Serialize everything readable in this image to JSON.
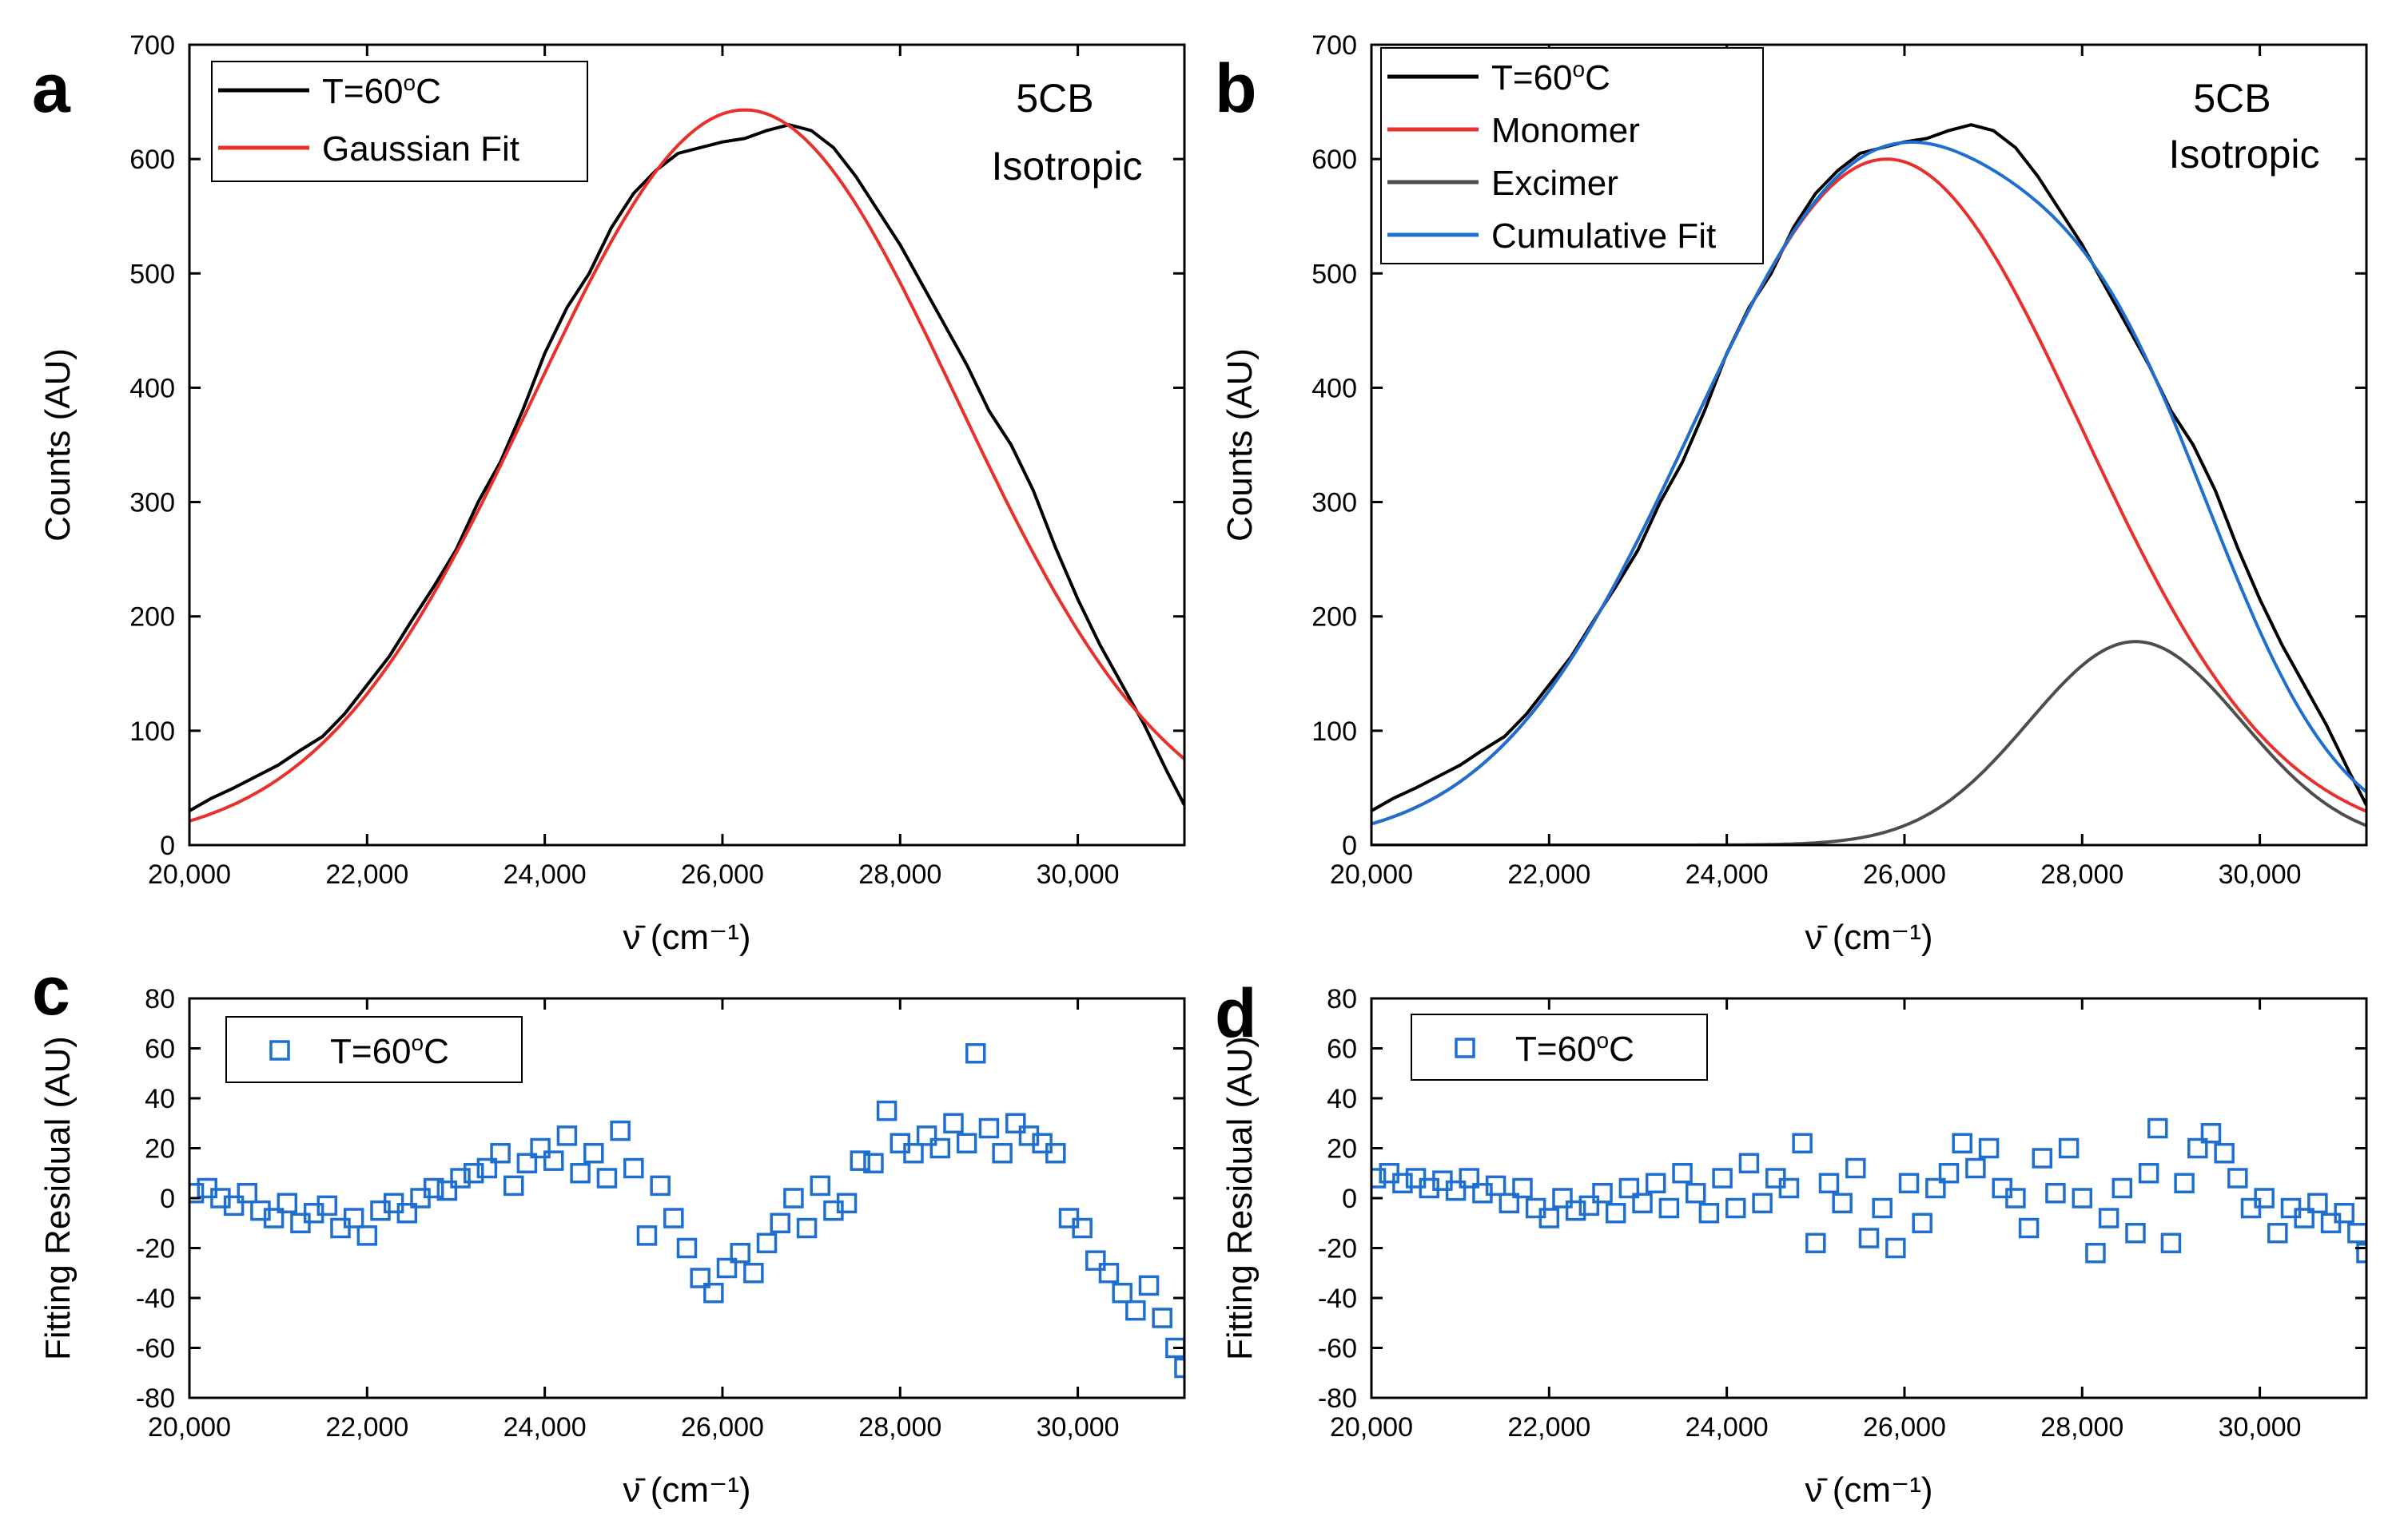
{
  "chart_data": [
    {
      "panel": "a",
      "type": "line",
      "annotation": [
        "5CB",
        "Isotropic"
      ],
      "xlabel": "ν̄ (cm⁻¹)",
      "ylabel": "Counts (AU)",
      "xlim": [
        20000,
        31200
      ],
      "ylim": [
        0,
        700
      ],
      "xticks": [
        20000,
        22000,
        24000,
        26000,
        28000,
        30000
      ],
      "xtick_labels": [
        "20,000",
        "22,000",
        "24,000",
        "26,000",
        "28,000",
        "30,000"
      ],
      "yticks": [
        0,
        100,
        200,
        300,
        400,
        500,
        600,
        700
      ],
      "ytick_labels": [
        "0",
        "100",
        "200",
        "300",
        "400",
        "500",
        "600",
        "700"
      ],
      "legend_position": "top-left",
      "series": [
        {
          "name": "T=60ºC",
          "color": "#000000",
          "x": [
            20000,
            20250,
            20500,
            20750,
            21000,
            21250,
            21500,
            21750,
            22000,
            22250,
            22500,
            22750,
            23000,
            23250,
            23500,
            23750,
            24000,
            24250,
            24500,
            24750,
            25000,
            25250,
            25500,
            25750,
            26000,
            26250,
            26500,
            26750,
            27000,
            27250,
            27500,
            27750,
            28000,
            28250,
            28500,
            28750,
            29000,
            29250,
            29500,
            29750,
            30000,
            30250,
            30500,
            30750,
            31000,
            31200
          ],
          "y": [
            30,
            41,
            50,
            60,
            70,
            83,
            95,
            115,
            140,
            165,
            196,
            226,
            258,
            300,
            335,
            380,
            430,
            470,
            500,
            540,
            570,
            590,
            605,
            610,
            615,
            618,
            625,
            630,
            625,
            610,
            585,
            555,
            525,
            490,
            455,
            420,
            380,
            350,
            310,
            260,
            215,
            175,
            140,
            105,
            65,
            35
          ]
        },
        {
          "name": "Gaussian Fit",
          "color": "#e8312c",
          "curve": {
            "form": "gaussian",
            "amplitude": 643,
            "center": 26250,
            "sigma": 2390
          },
          "x": [],
          "y": []
        }
      ]
    },
    {
      "panel": "b",
      "type": "line",
      "annotation": [
        "5CB",
        "Isotropic"
      ],
      "xlabel": "ν̄ (cm⁻¹)",
      "ylabel": "Counts (AU)",
      "xlim": [
        20000,
        31200
      ],
      "ylim": [
        0,
        700
      ],
      "xticks": [
        20000,
        22000,
        24000,
        26000,
        28000,
        30000
      ],
      "xtick_labels": [
        "20,000",
        "22,000",
        "24,000",
        "26,000",
        "28,000",
        "30,000"
      ],
      "yticks": [
        0,
        100,
        200,
        300,
        400,
        500,
        600,
        700
      ],
      "ytick_labels": [
        "0",
        "100",
        "200",
        "300",
        "400",
        "500",
        "600",
        "700"
      ],
      "legend_position": "top-left",
      "series": [
        {
          "name": "T=60ºC",
          "color": "#000000",
          "x": [
            20000,
            20250,
            20500,
            20750,
            21000,
            21250,
            21500,
            21750,
            22000,
            22250,
            22500,
            22750,
            23000,
            23250,
            23500,
            23750,
            24000,
            24250,
            24500,
            24750,
            25000,
            25250,
            25500,
            25750,
            26000,
            26250,
            26500,
            26750,
            27000,
            27250,
            27500,
            27750,
            28000,
            28250,
            28500,
            28750,
            29000,
            29250,
            29500,
            29750,
            30000,
            30250,
            30500,
            30750,
            31000,
            31200
          ],
          "y": [
            30,
            41,
            50,
            60,
            70,
            83,
            95,
            115,
            140,
            165,
            196,
            226,
            258,
            300,
            335,
            380,
            430,
            470,
            500,
            540,
            570,
            590,
            605,
            610,
            615,
            618,
            625,
            630,
            625,
            610,
            585,
            555,
            525,
            490,
            455,
            420,
            380,
            350,
            310,
            260,
            215,
            175,
            140,
            105,
            65,
            35
          ]
        },
        {
          "name": "Monomer",
          "color": "#e8312c",
          "curve": {
            "form": "gaussian",
            "amplitude": 600,
            "center": 25800,
            "sigma": 2200
          },
          "x": [],
          "y": []
        },
        {
          "name": "Excimer",
          "color": "#4d4d4d",
          "curve": {
            "form": "gaussian",
            "amplitude": 178,
            "center": 28600,
            "sigma": 1200
          },
          "x": [],
          "y": []
        },
        {
          "name": "Cumulative Fit",
          "color": "#1f6fd1",
          "curve": {
            "form": "sum",
            "of": [
              "Monomer",
              "Excimer"
            ]
          },
          "x": [],
          "y": []
        }
      ]
    },
    {
      "panel": "c",
      "type": "scatter",
      "xlabel": "ν̄ (cm⁻¹)",
      "ylabel": "Fitting Residual (AU)",
      "xlim": [
        20000,
        31200
      ],
      "ylim": [
        -80,
        80
      ],
      "xticks": [
        20000,
        22000,
        24000,
        26000,
        28000,
        30000
      ],
      "xtick_labels": [
        "20,000",
        "22,000",
        "24,000",
        "26,000",
        "28,000",
        "30,000"
      ],
      "yticks": [
        -80,
        -60,
        -40,
        -20,
        0,
        20,
        40,
        60,
        80
      ],
      "ytick_labels": [
        "-80",
        "-60",
        "-40",
        "-20",
        "0",
        "20",
        "40",
        "60",
        "80"
      ],
      "legend_position": "top-left",
      "series": [
        {
          "name": "T=60ºC",
          "color": "#1f6fd1",
          "marker": "open-square",
          "x": [
            20050,
            20200,
            20350,
            20500,
            20650,
            20800,
            20950,
            21100,
            21250,
            21400,
            21550,
            21700,
            21850,
            22000,
            22150,
            22300,
            22450,
            22600,
            22750,
            22900,
            23050,
            23200,
            23350,
            23500,
            23650,
            23800,
            23950,
            24100,
            24250,
            24400,
            24550,
            24700,
            24850,
            25000,
            25150,
            25300,
            25450,
            25600,
            25750,
            25900,
            26050,
            26200,
            26350,
            26500,
            26650,
            26800,
            26950,
            27100,
            27250,
            27400,
            27550,
            27700,
            27850,
            28000,
            28150,
            28300,
            28450,
            28600,
            28750,
            28850,
            29000,
            29150,
            29300,
            29450,
            29600,
            29750,
            29900,
            30050,
            30200,
            30350,
            30500,
            30650,
            30800,
            30950,
            31100,
            31200
          ],
          "y": [
            2,
            4,
            0,
            -3,
            2,
            -5,
            -8,
            -2,
            -10,
            -6,
            -3,
            -12,
            -8,
            -15,
            -5,
            -2,
            -6,
            0,
            4,
            3,
            8,
            10,
            12,
            18,
            5,
            14,
            20,
            15,
            25,
            10,
            18,
            8,
            27,
            12,
            -15,
            5,
            -8,
            -20,
            -32,
            -38,
            -28,
            -22,
            -30,
            -18,
            -10,
            0,
            -12,
            5,
            -5,
            -2,
            15,
            14,
            35,
            22,
            18,
            25,
            20,
            30,
            22,
            58,
            28,
            18,
            30,
            25,
            22,
            18,
            -8,
            -12,
            -25,
            -30,
            -38,
            -45,
            -35,
            -48,
            -60,
            -68
          ]
        }
      ]
    },
    {
      "panel": "d",
      "type": "scatter",
      "xlabel": "ν̄ (cm⁻¹)",
      "ylabel": "Fitting Residual (AU)",
      "xlim": [
        20000,
        31200
      ],
      "ylim": [
        -80,
        80
      ],
      "xticks": [
        20000,
        22000,
        24000,
        26000,
        28000,
        30000
      ],
      "xtick_labels": [
        "20,000",
        "22,000",
        "24,000",
        "26,000",
        "28,000",
        "30,000"
      ],
      "yticks": [
        -80,
        -60,
        -40,
        -20,
        0,
        20,
        40,
        60,
        80
      ],
      "ytick_labels": [
        "-80",
        "-60",
        "-40",
        "-20",
        "0",
        "20",
        "40",
        "60",
        "80"
      ],
      "legend_position": "top-left",
      "series": [
        {
          "name": "T=60ºC",
          "color": "#1f6fd1",
          "marker": "open-square",
          "x": [
            20050,
            20200,
            20350,
            20500,
            20650,
            20800,
            20950,
            21100,
            21250,
            21400,
            21550,
            21700,
            21850,
            22000,
            22150,
            22300,
            22450,
            22600,
            22750,
            22900,
            23050,
            23200,
            23350,
            23500,
            23650,
            23800,
            23950,
            24100,
            24250,
            24400,
            24550,
            24700,
            24850,
            25000,
            25150,
            25300,
            25450,
            25600,
            25750,
            25900,
            26050,
            26200,
            26350,
            26500,
            26650,
            26800,
            26950,
            27100,
            27250,
            27400,
            27550,
            27700,
            27850,
            28000,
            28150,
            28300,
            28450,
            28600,
            28750,
            28850,
            29000,
            29150,
            29300,
            29450,
            29600,
            29750,
            29900,
            30050,
            30200,
            30350,
            30500,
            30650,
            30800,
            30950,
            31100,
            31200
          ],
          "y": [
            8,
            10,
            6,
            8,
            4,
            7,
            3,
            8,
            2,
            5,
            -2,
            4,
            -4,
            -8,
            0,
            -5,
            -3,
            2,
            -6,
            4,
            -2,
            6,
            -4,
            10,
            2,
            -6,
            8,
            -4,
            14,
            -2,
            8,
            4,
            22,
            -18,
            6,
            -2,
            12,
            -16,
            -4,
            -20,
            6,
            -10,
            4,
            10,
            22,
            12,
            20,
            4,
            0,
            -12,
            16,
            2,
            20,
            0,
            -22,
            -8,
            4,
            -14,
            10,
            28,
            -18,
            6,
            20,
            26,
            18,
            8,
            -4,
            0,
            -14,
            -4,
            -8,
            -2,
            -10,
            -6,
            -14,
            -22
          ]
        }
      ]
    }
  ]
}
